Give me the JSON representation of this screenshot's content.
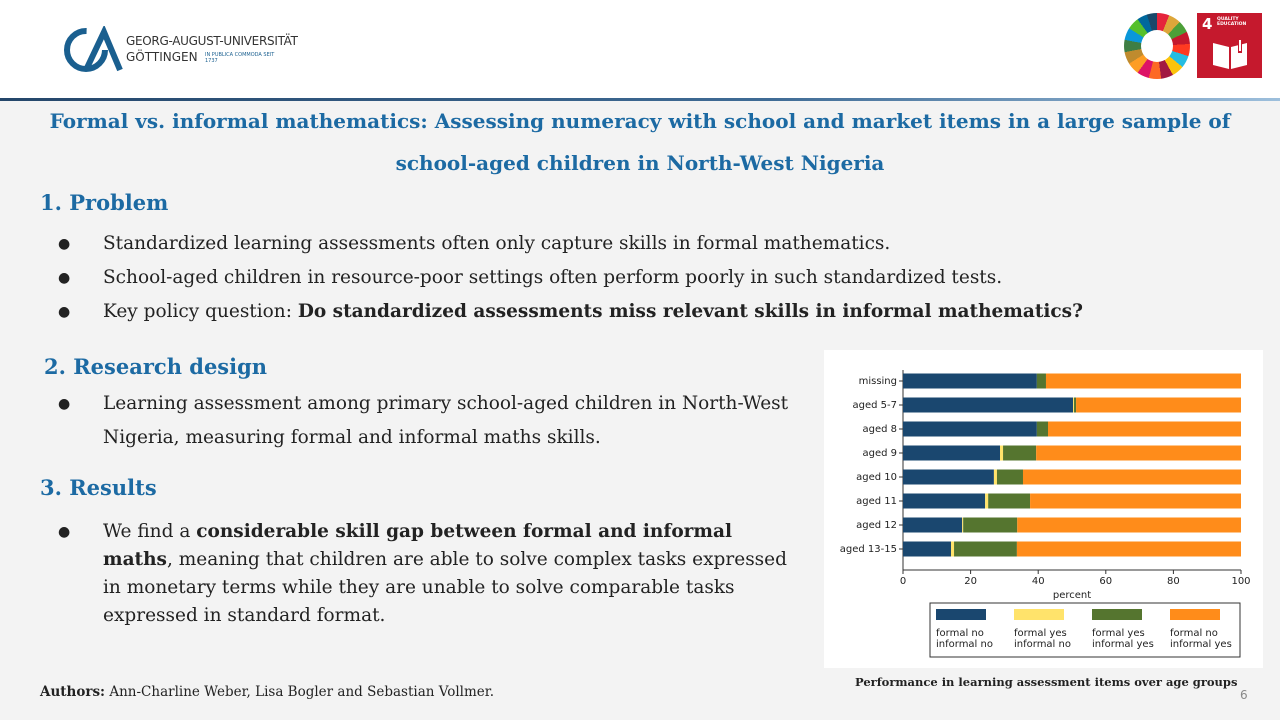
{
  "logo": {
    "line1": "GEORG-AUGUST-UNIVERSITÄT",
    "line2": "GÖTTINGEN",
    "motto": "IN PUBLICA COMMODA SEIT 1737"
  },
  "sdg": {
    "number": "4",
    "label": "QUALITY EDUCATION"
  },
  "title": "Formal vs. informal mathematics: Assessing numeracy with school and market items in a large sample of school-aged children in North-West Nigeria",
  "sections": [
    {
      "heading": "1. Problem",
      "bullets": [
        [
          "Standardized learning assessments often only capture skills in formal mathematics."
        ],
        [
          "School-aged children in resource-poor settings often perform poorly in such standardized tests."
        ],
        [
          "Key policy question: ",
          "Do standardized assessments miss relevant skills in informal mathematics",
          "?"
        ]
      ]
    },
    {
      "heading": "2. Research design",
      "bullets": [
        [
          "Learning assessment among primary school-aged children in North-West Nigeria, measuring formal and informal maths skills."
        ]
      ]
    },
    {
      "heading": "3. Results",
      "bullets": [
        [
          "We find a ",
          "considerable skill gap between formal and informal maths",
          ", meaning that children are able to solve complex tasks expressed in monetary terms while they are unable to solve comparable tasks expressed in standard format."
        ]
      ]
    }
  ],
  "chart_data": {
    "type": "stacked-bar-horizontal",
    "categories": [
      "missing",
      "aged 5-7",
      "aged 8",
      "aged 9",
      "aged 10",
      "aged 11",
      "aged 12",
      "aged 13-15"
    ],
    "series": [
      {
        "name": "formal no informal no",
        "color": "#1a476f",
        "values": [
          39.6,
          50.3,
          39.6,
          28.7,
          26.9,
          24.3,
          17.5,
          14.2
        ]
      },
      {
        "name": "formal yes informal no",
        "color": "#ffe36b",
        "values": [
          0,
          0.3,
          0,
          0.9,
          0.9,
          0.9,
          0.3,
          0.9
        ]
      },
      {
        "name": "formal yes informal yes",
        "color": "#55752f",
        "values": [
          2.7,
          0.6,
          3.3,
          9.8,
          7.7,
          12.4,
          16.0,
          18.6
        ]
      },
      {
        "name": "formal no informal yes",
        "color": "#ff8c1a",
        "values": [
          57.7,
          48.8,
          57.1,
          60.6,
          64.5,
          62.4,
          66.2,
          66.3
        ]
      }
    ],
    "xlabel": "percent",
    "xlim": [
      0,
      100
    ],
    "xticks": [
      0,
      20,
      40,
      60,
      80,
      100
    ]
  },
  "caption": "Performance in learning assessment items over age groups",
  "authors": {
    "label": "Authors:",
    "names": "Ann-Charline Weber, Lisa Bogler and Sebastian Vollmer."
  },
  "page_number": 6
}
